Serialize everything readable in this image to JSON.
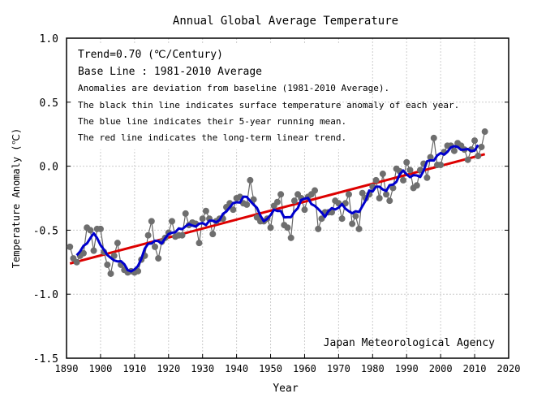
{
  "chart_data": {
    "type": "line",
    "title": "Annual Global Average Temperature",
    "xlabel": "Year",
    "ylabel": "Temperature Anomaly (℃)",
    "xlim": [
      1890,
      2020
    ],
    "ylim": [
      -1.5,
      1.0
    ],
    "xticks": [
      "1890",
      "1900",
      "1910",
      "1920",
      "1930",
      "1940",
      "1950",
      "1960",
      "1970",
      "1980",
      "1990",
      "2000",
      "2010",
      "2020"
    ],
    "yticks": [
      "1.0",
      "0.5",
      "0.0",
      "-0.5",
      "-1.0",
      "-1.5"
    ],
    "grid": true,
    "annotations": [
      "Trend=0.70 (℃/Century)",
      "Base Line : 1981-2010 Average",
      "Anomalies are deviation from baseline (1981-2010 Average).",
      "The black thin line indicates surface temperature anomaly of each year.",
      "The blue line indicates their 5-year running mean.",
      "The red line indicates the long-term linear trend."
    ],
    "credit": "Japan Meteorological Agency",
    "trend_per_century": 0.7,
    "colors": {
      "annual": "#666666",
      "running_mean": "#0000cc",
      "trend": "#dd0000"
    },
    "series": [
      {
        "x_start": 1891,
        "values": [
          -0.63,
          -0.72,
          -0.75,
          -0.7,
          -0.68,
          -0.48,
          -0.5,
          -0.66,
          -0.49,
          -0.49,
          -0.67,
          -0.77,
          -0.84,
          -0.7,
          -0.6,
          -0.77,
          -0.81,
          -0.83,
          -0.82,
          -0.83,
          -0.82,
          -0.73,
          -0.7,
          -0.54,
          -0.43,
          -0.63,
          -0.72,
          -0.59,
          -0.56,
          -0.52,
          -0.43,
          -0.55,
          -0.54,
          -0.54,
          -0.37,
          -0.46,
          -0.44,
          -0.45,
          -0.6,
          -0.41,
          -0.35,
          -0.41,
          -0.53,
          -0.43,
          -0.41,
          -0.41,
          -0.32,
          -0.29,
          -0.34,
          -0.25,
          -0.24,
          -0.29,
          -0.3,
          -0.11,
          -0.26,
          -0.4,
          -0.43,
          -0.43,
          -0.41,
          -0.48,
          -0.31,
          -0.28,
          -0.22,
          -0.46,
          -0.48,
          -0.56,
          -0.27,
          -0.22,
          -0.25,
          -0.34,
          -0.24,
          -0.22,
          -0.19,
          -0.49,
          -0.41,
          -0.36,
          -0.36,
          -0.36,
          -0.27,
          -0.29,
          -0.41,
          -0.29,
          -0.22,
          -0.45,
          -0.39,
          -0.49,
          -0.21,
          -0.25,
          -0.22,
          -0.16,
          -0.11,
          -0.25,
          -0.06,
          -0.22,
          -0.27,
          -0.17,
          -0.02,
          -0.04,
          -0.11,
          0.03,
          -0.03,
          -0.17,
          -0.15,
          -0.03,
          0.02,
          -0.09,
          0.07,
          0.22,
          0.01,
          0.01,
          0.11,
          0.16,
          0.16,
          0.12,
          0.18,
          0.16,
          0.13,
          0.05,
          0.13,
          0.2,
          0.08,
          0.15,
          0.27
        ]
      }
    ]
  }
}
